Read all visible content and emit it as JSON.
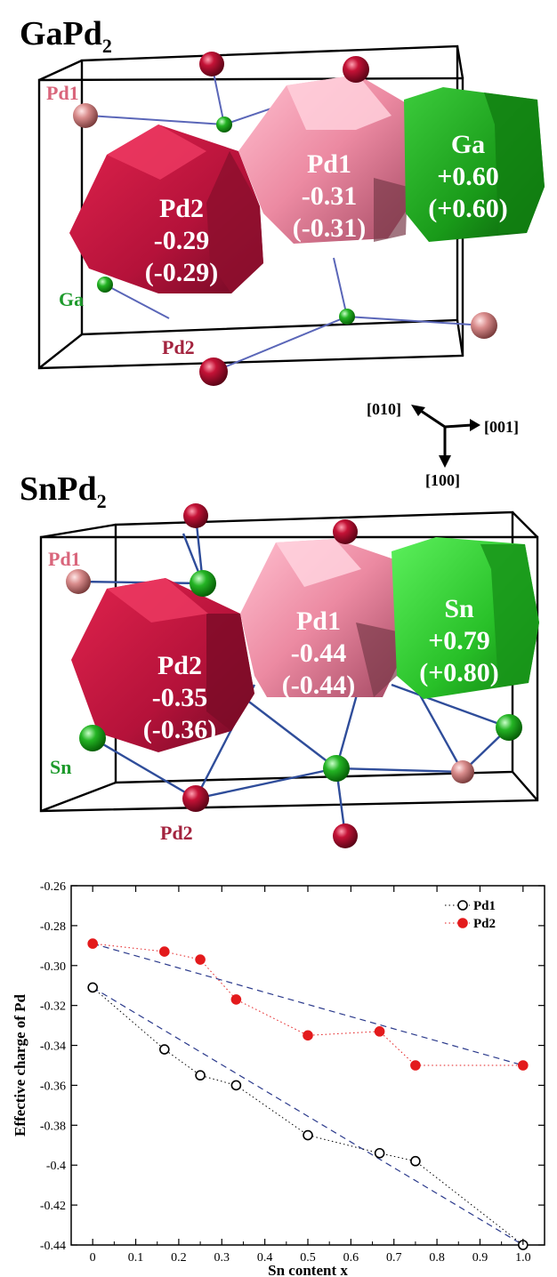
{
  "panel_top": {
    "compound": "GaPd",
    "subscript": "2",
    "site_labels": {
      "pd1": "Pd1",
      "ga": "Ga",
      "pd2": "Pd2"
    },
    "cells": {
      "pd2": {
        "name": "Pd2",
        "charge": "-0.29",
        "charge_alt": "(-0.29)"
      },
      "pd1": {
        "name": "Pd1",
        "charge": "-0.31",
        "charge_alt": "(-0.31)"
      },
      "ga": {
        "name": "Ga",
        "charge": "+0.60",
        "charge_alt": "(+0.60)"
      }
    }
  },
  "axes_triad": {
    "a": "[010]",
    "b": "[001]",
    "c": "[100]"
  },
  "panel_bottom": {
    "compound": "SnPd",
    "subscript": "2",
    "site_labels": {
      "pd1": "Pd1",
      "sn": "Sn",
      "pd2": "Pd2"
    },
    "cells": {
      "pd2": {
        "name": "Pd2",
        "charge": "-0.35",
        "charge_alt": "(-0.36)"
      },
      "pd1": {
        "name": "Pd1",
        "charge": "-0.44",
        "charge_alt": "(-0.44)"
      },
      "sn": {
        "name": "Sn",
        "charge": "+0.79",
        "charge_alt": "(+0.80)"
      }
    }
  },
  "colors": {
    "pd2_cell": "#c8173f",
    "pd1_cell": "#e87a97",
    "ga_cell": "#1e9e1e",
    "sn_cell": "#2ecf35",
    "pd2_atom": "#a80c2a",
    "pd1_atom": "#d68a8a",
    "ga_atom": "#22a822",
    "bond": "#5a66b8",
    "pd1_label": "#d9657b",
    "pd2_label": "#a3233e",
    "ga_label": "#1e9a2c",
    "series_pd1": "#000000",
    "series_pd2": "#e31a1c",
    "fit": "#2b3a8c"
  },
  "chart_data": {
    "type": "scatter",
    "xlabel": "Sn content x",
    "ylabel": "Effective charge of Pd",
    "xlim": [
      -0.05,
      1.05
    ],
    "ylim": [
      -0.44,
      -0.26
    ],
    "xticks": [
      "0",
      "0.1",
      "0.2",
      "0.3",
      "0.4",
      "0.5",
      "0.6",
      "0.7",
      "0.8",
      "0.9",
      "1.0"
    ],
    "xtick_values": [
      0,
      0.1,
      0.2,
      0.3,
      0.4,
      0.5,
      0.6,
      0.7,
      0.8,
      0.9,
      1.0
    ],
    "yticks": [
      "-0.26",
      "-0.28",
      "-0.30",
      "-0.32",
      "-0.34",
      "-0.36",
      "-0.38",
      "-0.4",
      "-0.42",
      "-0.44"
    ],
    "ytick_values": [
      -0.26,
      -0.28,
      -0.3,
      -0.32,
      -0.34,
      -0.36,
      -0.38,
      -0.4,
      -0.42,
      -0.44
    ],
    "legend_position": "top-right",
    "series": [
      {
        "name": "Pd1",
        "marker": "open-circle",
        "x": [
          0,
          0.1667,
          0.25,
          0.3333,
          0.5,
          0.6667,
          0.75,
          1.0
        ],
        "y": [
          -0.311,
          -0.342,
          -0.355,
          -0.36,
          -0.385,
          -0.394,
          -0.398,
          -0.44
        ]
      },
      {
        "name": "Pd2",
        "marker": "filled-circle",
        "x": [
          0,
          0.1667,
          0.25,
          0.3333,
          0.5,
          0.6667,
          0.75,
          1.0
        ],
        "y": [
          -0.289,
          -0.293,
          -0.297,
          -0.317,
          -0.335,
          -0.333,
          -0.35,
          -0.35
        ]
      }
    ],
    "fit_lines": [
      {
        "series": "Pd1",
        "x": [
          0,
          1.0
        ],
        "y": [
          -0.311,
          -0.44
        ]
      },
      {
        "series": "Pd2",
        "x": [
          0,
          1.0
        ],
        "y": [
          -0.289,
          -0.35
        ]
      }
    ]
  }
}
